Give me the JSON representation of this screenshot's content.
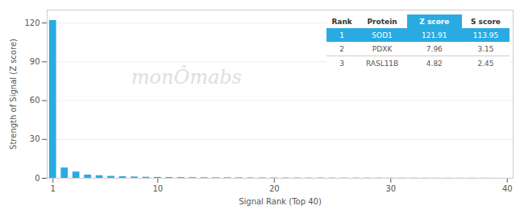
{
  "chart_data": {
    "type": "bar",
    "x": [
      1,
      2,
      3,
      4,
      5,
      6,
      7,
      8,
      9,
      10,
      11,
      12,
      13,
      14,
      15,
      16,
      17,
      18,
      19,
      20,
      21,
      22,
      23,
      24,
      25,
      26,
      27,
      28,
      29,
      30,
      31,
      32,
      33,
      34,
      35,
      36,
      37,
      38,
      39,
      40
    ],
    "values": [
      121.91,
      7.96,
      4.82,
      2.5,
      2.0,
      1.5,
      1.2,
      1.0,
      0.8,
      0.7,
      0.6,
      0.55,
      0.5,
      0.45,
      0.4,
      0.38,
      0.35,
      0.32,
      0.3,
      0.28,
      0.26,
      0.24,
      0.22,
      0.21,
      0.2,
      0.19,
      0.18,
      0.17,
      0.16,
      0.15,
      0.14,
      0.13,
      0.12,
      0.11,
      0.1,
      0.09,
      0.08,
      0.07,
      0.06,
      0.05
    ],
    "color": "#29ABE2",
    "xlabel": "Signal Rank (Top 40)",
    "ylabel": "Strength of Signal (Z score)",
    "xlim": [
      0.5,
      40.5
    ],
    "xticks": [
      1,
      10,
      20,
      30,
      40
    ],
    "ylim": [
      0,
      130
    ],
    "yticks": [
      0,
      30,
      60,
      90,
      120
    ],
    "grid": true,
    "annotations": [
      "monÔmabs"
    ],
    "table": {
      "columns": [
        "Rank",
        "Protein",
        "Z score",
        "S score"
      ],
      "rows": [
        [
          "1",
          "SOD1",
          "121.91",
          "113.95"
        ],
        [
          "2",
          "PDXK",
          "7.96",
          "3.15"
        ],
        [
          "3",
          "RASL11B",
          "4.82",
          "2.45"
        ]
      ]
    }
  }
}
